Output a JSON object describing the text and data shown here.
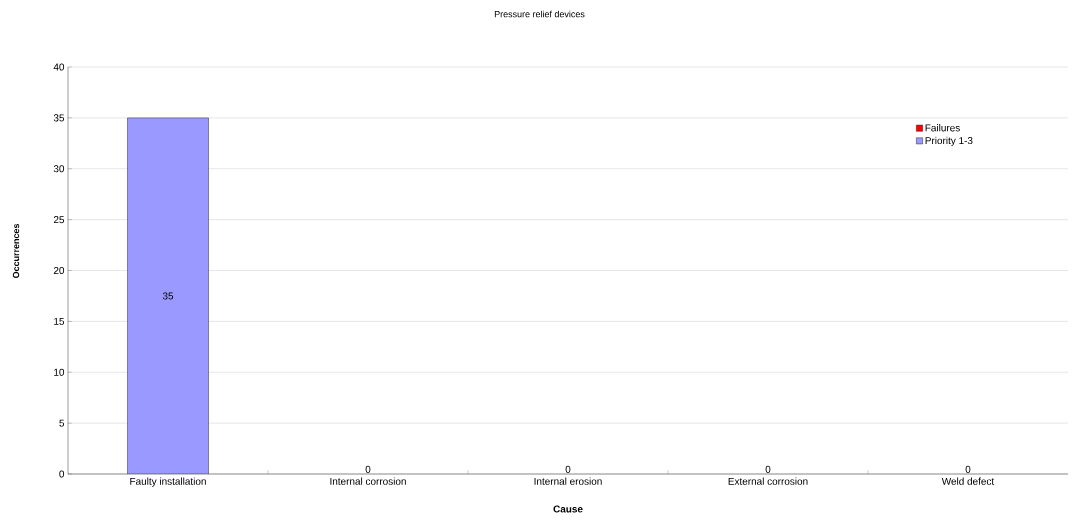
{
  "chart_data": {
    "type": "bar",
    "title": "Pressure relief devices",
    "xlabel": "Cause",
    "ylabel": "Occurrences",
    "categories": [
      "Faulty installation",
      "Internal corrosion",
      "Internal erosion",
      "External corrosion",
      "Weld defect"
    ],
    "stacked": true,
    "series": [
      {
        "name": "Failures",
        "color": "#ff0000",
        "values": [
          0,
          0,
          0,
          0,
          0
        ]
      },
      {
        "name": "Priority 1-3",
        "color": "#9999ff",
        "values": [
          35,
          0,
          0,
          0,
          0
        ],
        "value_labels": [
          "35",
          "0",
          "0",
          "0",
          "0"
        ]
      }
    ],
    "ylim": [
      0,
      40
    ],
    "yticks": [
      0,
      5,
      10,
      15,
      20,
      25,
      30,
      35,
      40
    ],
    "grid": "y",
    "legend": "right"
  }
}
